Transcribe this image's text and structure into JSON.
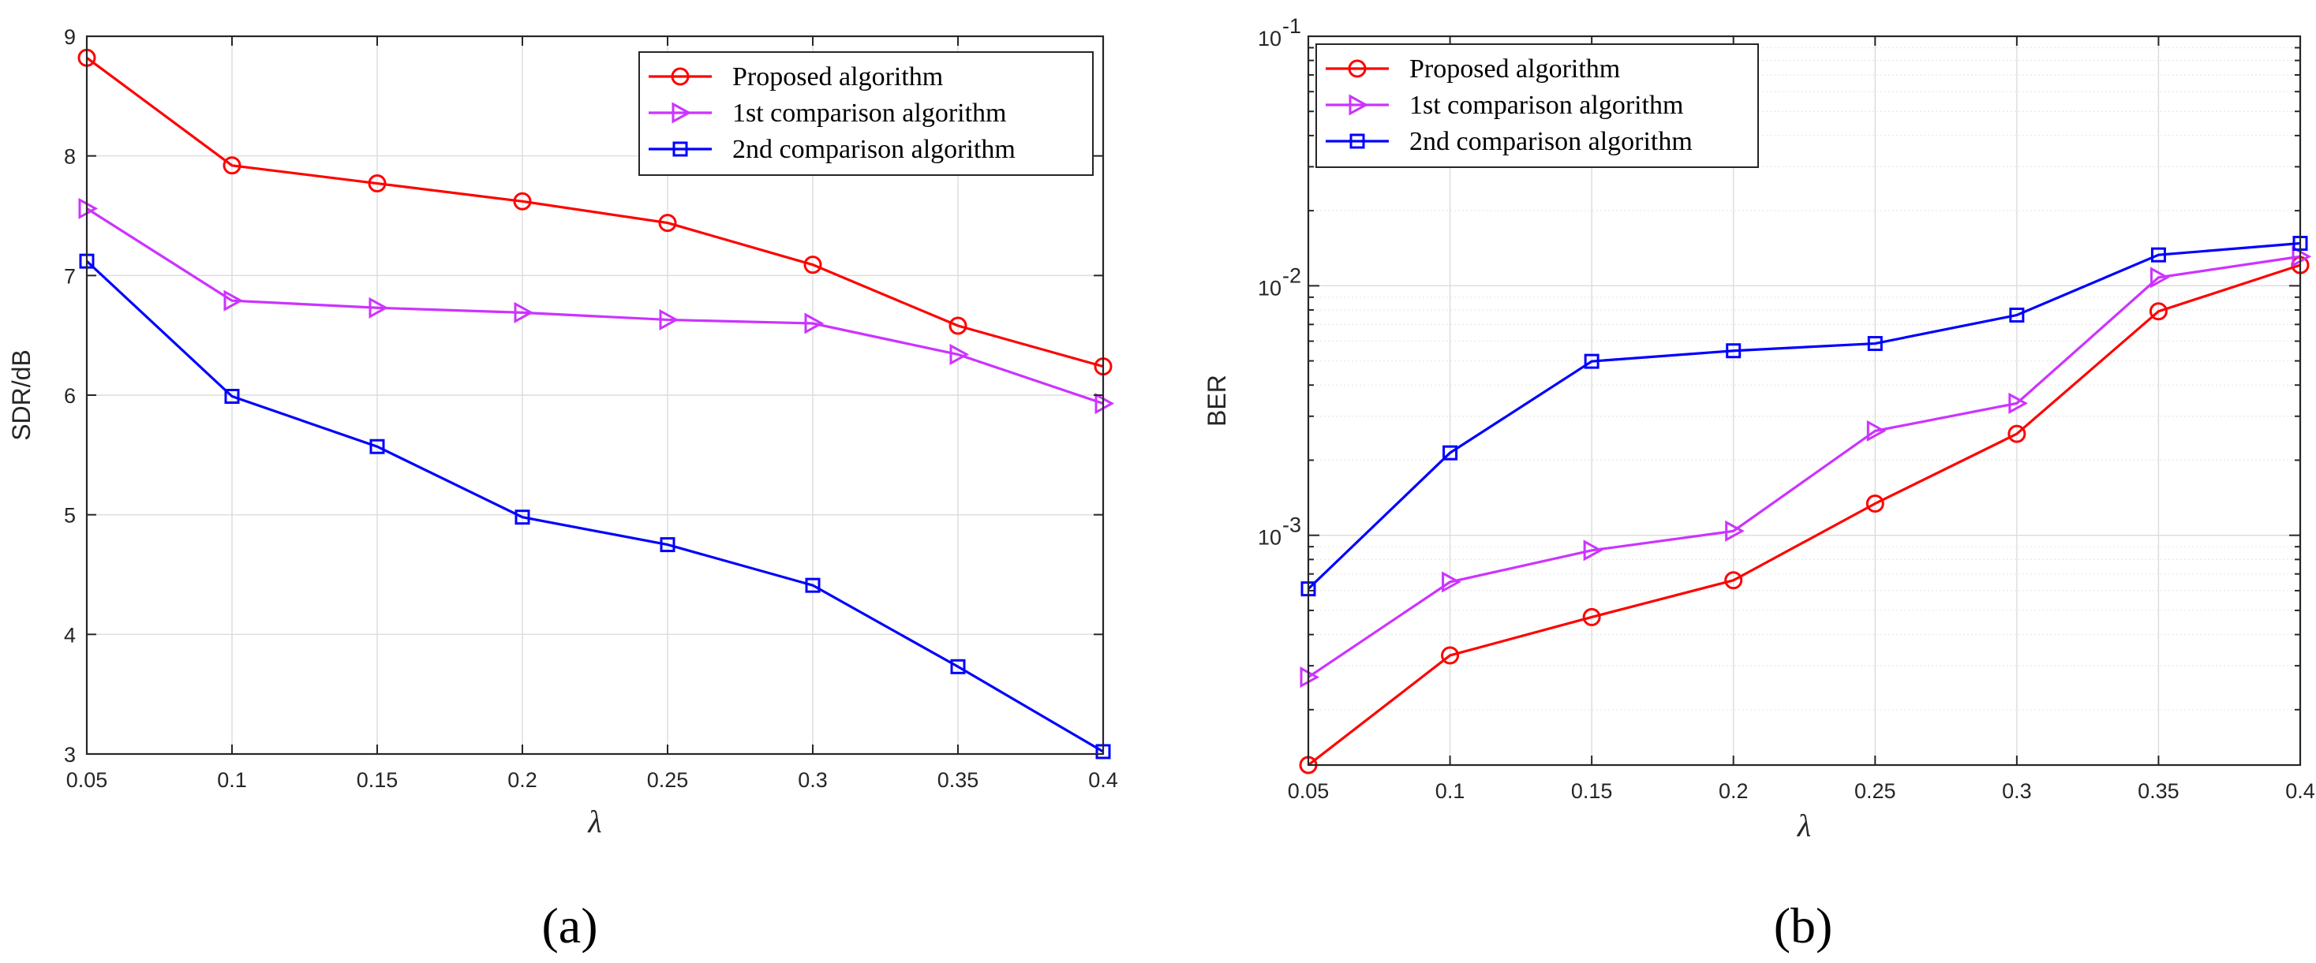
{
  "chart_data": [
    {
      "type": "line",
      "panel_label": "(a)",
      "xlabel": "λ",
      "ylabel": "SDR/dB",
      "yscale": "linear",
      "xlim": [
        0.05,
        0.4
      ],
      "ylim": [
        3,
        9
      ],
      "grid": true,
      "legend_position": "top-right",
      "x": [
        0.05,
        0.1,
        0.15,
        0.2,
        0.25,
        0.3,
        0.35,
        0.4
      ],
      "xtick_labels": [
        "0.05",
        "0.1",
        "0.15",
        "0.2",
        "0.25",
        "0.3",
        "0.35",
        "0.4"
      ],
      "yticks": [
        3,
        4,
        5,
        6,
        7,
        8,
        9
      ],
      "ytick_labels": [
        "3",
        "4",
        "5",
        "6",
        "7",
        "8",
        "9"
      ],
      "series": [
        {
          "name": "Proposed algorithm",
          "color": "#ff0000",
          "marker": "circle",
          "values": [
            8.82,
            7.92,
            7.77,
            7.62,
            7.44,
            7.09,
            6.58,
            6.24
          ]
        },
        {
          "name": "1st comparison algorithm",
          "color": "#cc33ff",
          "marker": "triangle-right",
          "values": [
            7.56,
            6.79,
            6.73,
            6.69,
            6.63,
            6.6,
            6.34,
            5.93
          ]
        },
        {
          "name": "2nd comparison algorithm",
          "color": "#0000ff",
          "marker": "square",
          "values": [
            7.12,
            5.99,
            5.57,
            4.98,
            4.75,
            4.41,
            3.73,
            3.02
          ]
        }
      ]
    },
    {
      "type": "line",
      "panel_label": "(b)",
      "xlabel": "λ",
      "ylabel": "BER",
      "yscale": "log",
      "xlim": [
        0.05,
        0.4
      ],
      "ylim": [
        0.00012,
        0.1
      ],
      "grid": true,
      "legend_position": "top-left",
      "x": [
        0.05,
        0.1,
        0.15,
        0.2,
        0.25,
        0.3,
        0.35,
        0.4
      ],
      "xtick_labels": [
        "0.05",
        "0.1",
        "0.15",
        "0.2",
        "0.25",
        "0.3",
        "0.35",
        "0.4"
      ],
      "yticks": [
        0.001,
        0.01,
        0.1
      ],
      "ytick_labels": [
        {
          "base": "10",
          "exp": "-3"
        },
        {
          "base": "10",
          "exp": "-2"
        },
        {
          "base": "10",
          "exp": "-1"
        }
      ],
      "series": [
        {
          "name": "Proposed algorithm",
          "color": "#ff0000",
          "marker": "circle",
          "values": [
            0.00012,
            0.00033,
            0.00047,
            0.00066,
            0.00134,
            0.00255,
            0.0079,
            0.0121
          ]
        },
        {
          "name": "1st comparison algorithm",
          "color": "#cc33ff",
          "marker": "triangle-right",
          "values": [
            0.00027,
            0.00065,
            0.00087,
            0.00104,
            0.00262,
            0.00338,
            0.0108,
            0.0131
          ]
        },
        {
          "name": "2nd comparison algorithm",
          "color": "#0000ff",
          "marker": "square",
          "values": [
            0.00061,
            0.00214,
            0.00498,
            0.00549,
            0.00587,
            0.00763,
            0.0133,
            0.0148
          ]
        }
      ]
    }
  ]
}
